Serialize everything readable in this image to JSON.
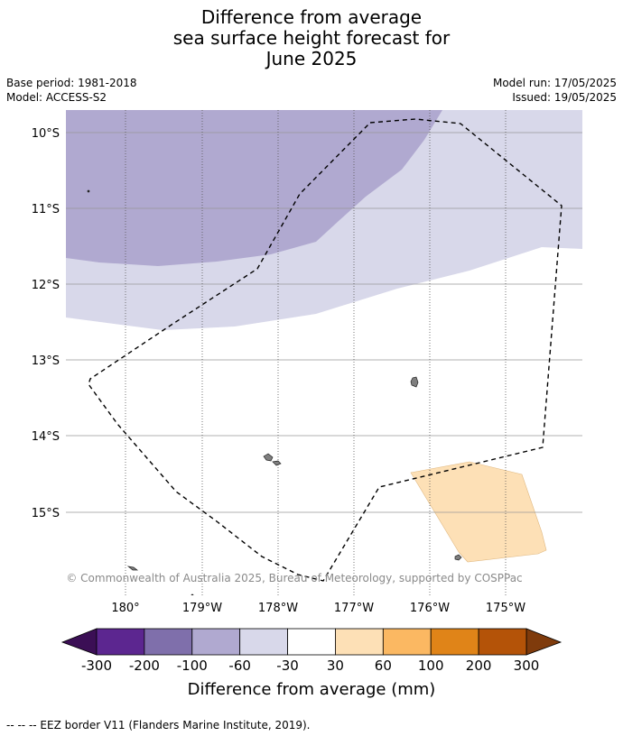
{
  "title": {
    "line1": "Difference from average",
    "line2": "sea surface height forecast for",
    "line3": "June 2025"
  },
  "meta": {
    "base_period": "Base period: 1981-2018",
    "model": "Model: ACCESS-S2",
    "model_run": "Model run: 17/05/2025",
    "issued": "Issued: 19/05/2025"
  },
  "map": {
    "lat_labels": [
      "10°S",
      "11°S",
      "12°S",
      "13°S",
      "14°S",
      "15°S"
    ],
    "lon_labels": [
      "180°",
      "179°W",
      "178°W",
      "177°W",
      "176°W",
      "175°W"
    ],
    "copyright": "© Commonwealth of Australia 2025, Bureau of Meteorology, supported by COSPPac",
    "colors": {
      "neg_100_60": "#b0a9d0",
      "neg_60_30": "#d8d8ea",
      "pos_30_60": "#fde0b6",
      "land": "#7f7f7f"
    }
  },
  "colorbar": {
    "ticks": [
      "-300",
      "-200",
      "-100",
      "-60",
      "-30",
      "30",
      "60",
      "100",
      "200",
      "300"
    ],
    "colors": [
      "#5c2690",
      "#7f6fab",
      "#b0a9d0",
      "#d8d8ea",
      "#ffffff",
      "#fde0b6",
      "#fbb862",
      "#e08418",
      "#b45308"
    ],
    "under_color": "#3b0f55",
    "over_color": "#7f3b0c",
    "label": "Difference from average (mm)"
  },
  "footer": "--  --  -- EEZ border V11 (Flanders Marine Institute, 2019)."
}
